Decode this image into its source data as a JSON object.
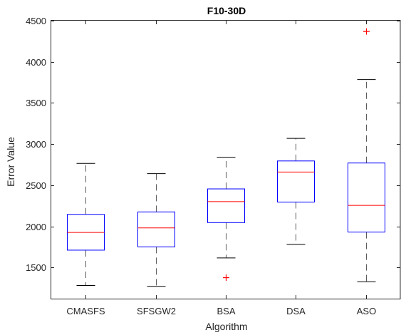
{
  "chart_data": {
    "type": "boxplot",
    "title": "F10-30D",
    "xlabel": "Algorithm",
    "ylabel": "Error Value",
    "ylim": [
      1120,
      4510
    ],
    "yticks": [
      1500,
      2000,
      2500,
      3000,
      3500,
      4000,
      4500
    ],
    "grid": false,
    "categories": [
      "CMASFS",
      "SFSGW2",
      "BSA",
      "DSA",
      "ASO"
    ],
    "boxes": [
      {
        "category": "CMASFS",
        "whisker_low": 1280,
        "q1": 1710,
        "median": 1925,
        "q3": 2145,
        "whisker_high": 2765,
        "outliers": []
      },
      {
        "category": "SFSGW2",
        "whisker_low": 1270,
        "q1": 1750,
        "median": 1980,
        "q3": 2175,
        "whisker_high": 2640,
        "outliers": []
      },
      {
        "category": "BSA",
        "whisker_low": 1615,
        "q1": 2045,
        "median": 2300,
        "q3": 2455,
        "whisker_high": 2840,
        "outliers": [
          1375
        ]
      },
      {
        "category": "DSA",
        "whisker_low": 1780,
        "q1": 2295,
        "median": 2660,
        "q3": 2795,
        "whisker_high": 3070,
        "outliers": []
      },
      {
        "category": "ASO",
        "whisker_low": 1325,
        "q1": 1930,
        "median": 2255,
        "q3": 2770,
        "whisker_high": 3785,
        "outliers": [
          4370
        ]
      }
    ],
    "colors": {
      "box": "#0000ff",
      "median": "#ff0000",
      "whisker": "#000000",
      "outlier": "#ff0000",
      "axis": "#262626"
    }
  }
}
